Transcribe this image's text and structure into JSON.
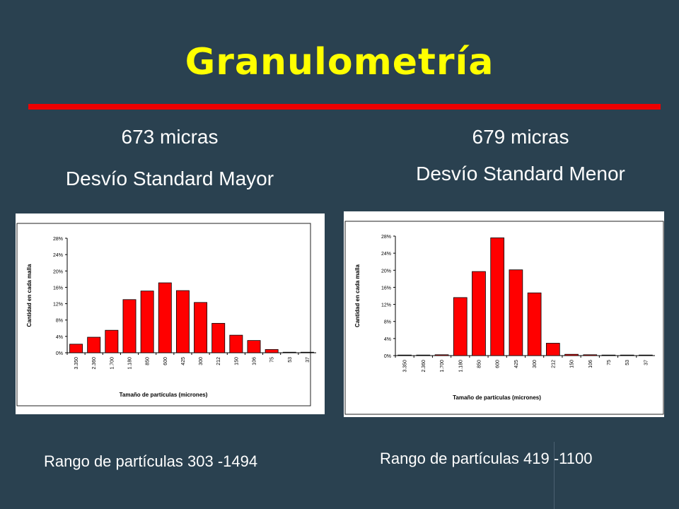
{
  "title": "Granulometría",
  "accent_color": "#ffff00",
  "rule_color": "#ee0000",
  "left": {
    "heading": "673 micras",
    "subheading": "Desvío Standard Mayor",
    "range_text": "Rango de partículas 303 -1494"
  },
  "right": {
    "heading": "679 micras",
    "subheading": "Desvío Standard Menor",
    "range_text": "Rango de partículas 419 -1100"
  },
  "chart_data": [
    {
      "type": "bar",
      "ylabel": "Cantidad en cada malla",
      "xlabel": "Tamaño de partículas (micrones)",
      "categories": [
        "3.350",
        "2.360",
        "1.700",
        "1.180",
        "850",
        "600",
        "425",
        "300",
        "212",
        "150",
        "106",
        "75",
        "53",
        "37"
      ],
      "values": [
        2.1,
        3.8,
        5.5,
        13.0,
        15.1,
        17.1,
        15.2,
        12.3,
        7.2,
        4.3,
        3.0,
        0.8,
        0.1,
        0
      ],
      "yticks": [
        "0%",
        "4%",
        "8%",
        "12%",
        "16%",
        "20%",
        "24%",
        "28%"
      ],
      "ylim": [
        0,
        28
      ],
      "bar_color": "#ff0000",
      "grid": false
    },
    {
      "type": "bar",
      "ylabel": "Cantidad en cada malla",
      "xlabel": "Tamaño de partículas (micrones)",
      "categories": [
        "3.350",
        "2.360",
        "1.700",
        "1.180",
        "850",
        "600",
        "425",
        "300",
        "212",
        "150",
        "106",
        "75",
        "53",
        "37"
      ],
      "values": [
        0,
        0.1,
        0.2,
        13.6,
        19.7,
        27.6,
        20.1,
        14.7,
        2.9,
        0.3,
        0.2,
        0.1,
        0,
        0
      ],
      "yticks": [
        "0%",
        "4%",
        "8%",
        "12%",
        "16%",
        "20%",
        "24%",
        "28%"
      ],
      "ylim": [
        0,
        28
      ],
      "bar_color": "#ff0000",
      "grid": false
    }
  ]
}
